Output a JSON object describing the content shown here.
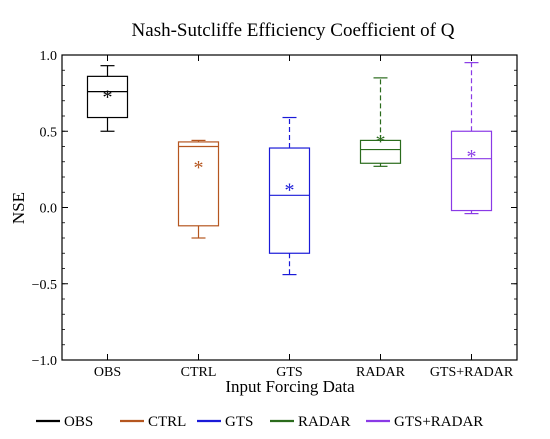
{
  "chart_data": {
    "type": "box",
    "title": "Nash-Sutcliffe Efficiency Coefficient of Q",
    "xlabel": "Input Forcing Data",
    "ylabel": "NSE",
    "ylim": [
      -1.0,
      1.0
    ],
    "yticks": [
      -1.0,
      -0.5,
      0.0,
      0.5,
      1.0
    ],
    "ytick_labels": [
      "−1.0",
      "−0.5",
      "0.0",
      "0.5",
      "1.0"
    ],
    "categories": [
      "OBS",
      "CTRL",
      "GTS",
      "RADAR",
      "GTS+RADAR"
    ],
    "series": [
      {
        "name": "OBS",
        "color": "#000000",
        "dashed": false,
        "whisker_low": 0.5,
        "q1": 0.59,
        "median": 0.76,
        "q3": 0.86,
        "whisker_high": 0.93,
        "mean": 0.74
      },
      {
        "name": "CTRL",
        "color": "#b5561f",
        "dashed": false,
        "whisker_low": -0.2,
        "q1": -0.12,
        "median": 0.4,
        "q3": 0.43,
        "whisker_high": 0.44,
        "mean": 0.28
      },
      {
        "name": "GTS",
        "color": "#1a1ad8",
        "dashed": true,
        "whisker_low": -0.44,
        "q1": -0.3,
        "median": 0.08,
        "q3": 0.39,
        "whisker_high": 0.59,
        "mean": 0.13
      },
      {
        "name": "RADAR",
        "color": "#2a6b1c",
        "dashed": true,
        "whisker_low": 0.27,
        "q1": 0.29,
        "median": 0.38,
        "q3": 0.44,
        "whisker_high": 0.85,
        "mean": 0.45
      },
      {
        "name": "GTS+RADAR",
        "color": "#8a3ae6",
        "dashed": true,
        "whisker_low": -0.04,
        "q1": -0.02,
        "median": 0.32,
        "q3": 0.5,
        "whisker_high": 0.95,
        "mean": 0.35
      }
    ],
    "mean_marker": "*",
    "legend": {
      "position": "bottom"
    }
  }
}
